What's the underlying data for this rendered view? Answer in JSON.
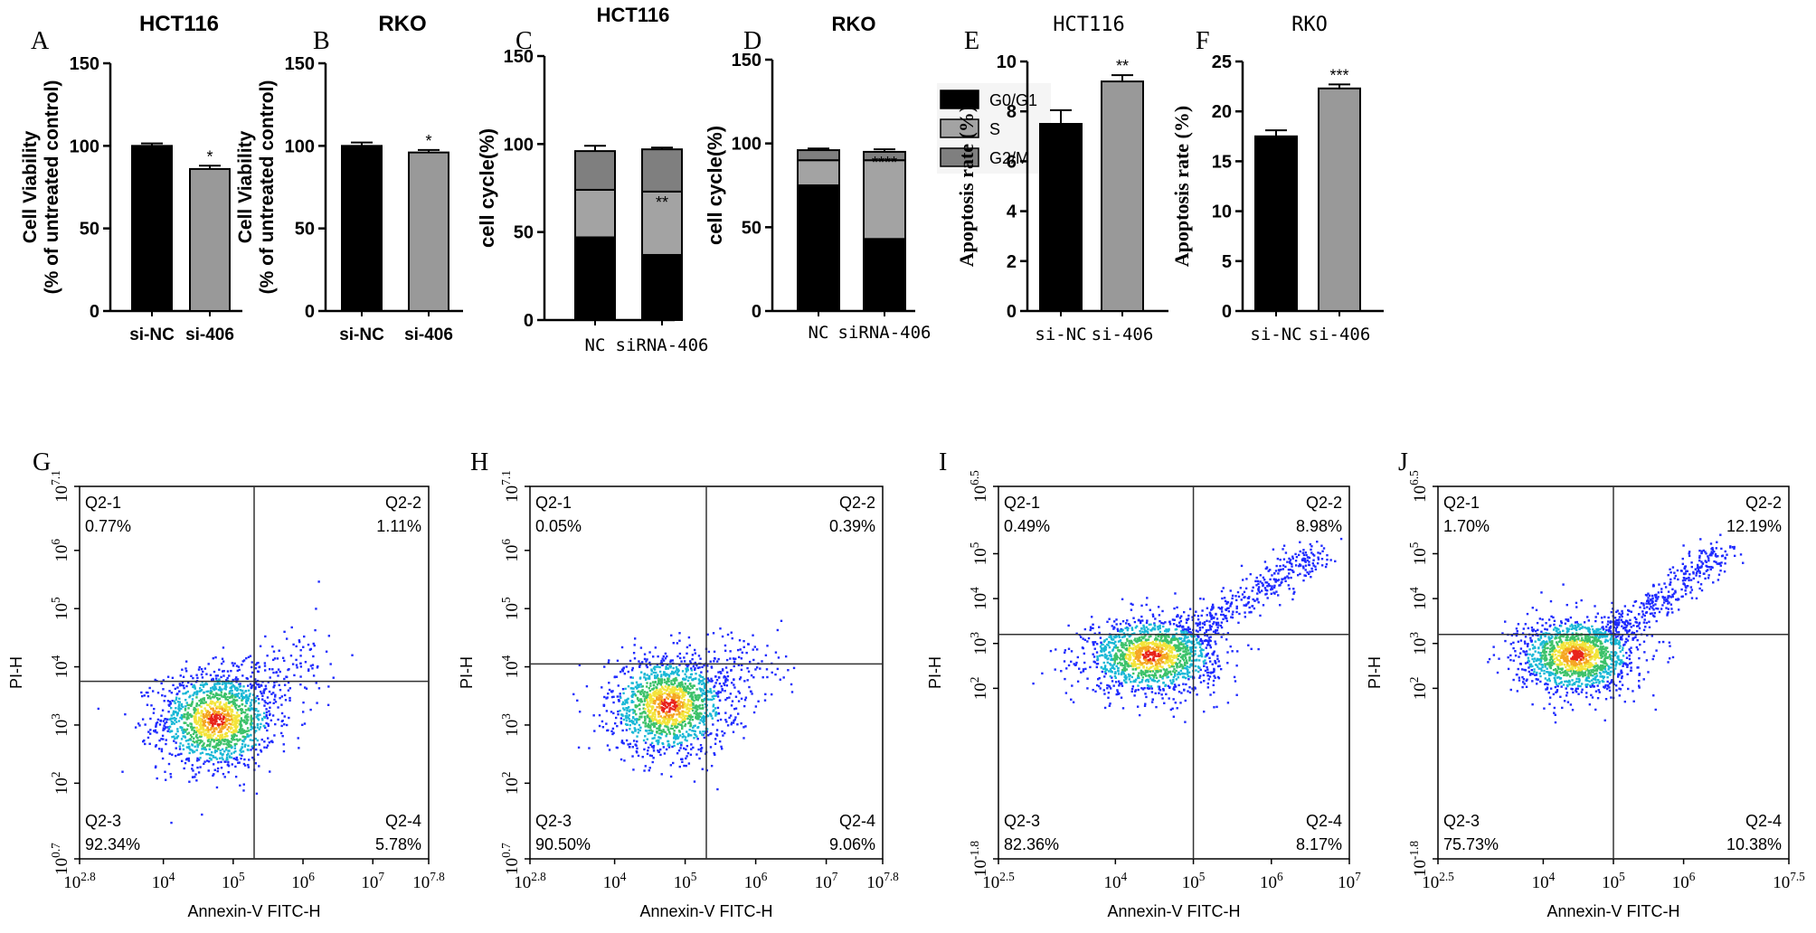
{
  "panel_letters": [
    "A",
    "B",
    "C",
    "D",
    "E",
    "F",
    "G",
    "H",
    "I",
    "J"
  ],
  "chart_data": [
    {
      "id": "A",
      "type": "bar",
      "title": "HCT116",
      "ylabel_line1": "Cell Viability",
      "ylabel_line2": "(% of untreated control)",
      "ylim": [
        0,
        150
      ],
      "yticks": [
        "0",
        "50",
        "100",
        "150"
      ],
      "categories": [
        "si-NC",
        "si-406"
      ],
      "values": [
        100,
        86
      ],
      "errors": [
        1.5,
        2
      ],
      "fills": [
        "#000000",
        "#999999"
      ],
      "significance": [
        "",
        "*"
      ]
    },
    {
      "id": "B",
      "type": "bar",
      "title": "RKO",
      "ylabel_line1": "Cell Viability",
      "ylabel_line2": "(% of untreated control)",
      "ylim": [
        0,
        150
      ],
      "yticks": [
        "0",
        "50",
        "100",
        "150"
      ],
      "categories": [
        "si-NC",
        "si-406"
      ],
      "values": [
        100,
        96
      ],
      "errors": [
        2,
        1.5
      ],
      "fills": [
        "#000000",
        "#999999"
      ],
      "significance": [
        "",
        "*"
      ]
    },
    {
      "id": "C",
      "type": "bar",
      "stacked": true,
      "title": "HCT116",
      "ylabel": "cell cycle(%)",
      "ylim": [
        0,
        150
      ],
      "yticks": [
        "0",
        "50",
        "100",
        "150"
      ],
      "categories": [
        "NC",
        "siRNA-406"
      ],
      "series": [
        {
          "name": "G0/G1",
          "values": [
            47,
            37
          ],
          "errors": [
            1,
            2
          ]
        },
        {
          "name": "S",
          "values": [
            27,
            36
          ],
          "errors": [
            3,
            2
          ]
        },
        {
          "name": "G2/M",
          "values": [
            22,
            24
          ],
          "errors": [
            3,
            1
          ]
        }
      ],
      "significance": {
        "S": [
          "",
          "**"
        ],
        "G0/G1": [
          "",
          "***"
        ]
      }
    },
    {
      "id": "D",
      "type": "bar",
      "stacked": true,
      "title": "RKO",
      "ylabel": "cell cycle(%)",
      "ylim": [
        0,
        150
      ],
      "yticks": [
        "0",
        "50",
        "100",
        "150"
      ],
      "categories": [
        "NC",
        "siRNA-406"
      ],
      "series": [
        {
          "name": "G0/G1",
          "values": [
            75,
            43
          ],
          "errors": [
            1.5,
            2
          ]
        },
        {
          "name": "S",
          "values": [
            15,
            47
          ],
          "errors": [
            1,
            1
          ]
        },
        {
          "name": "G2/M",
          "values": [
            6,
            5
          ],
          "errors": [
            1,
            1.5
          ]
        }
      ],
      "legend": [
        "G0/G1",
        "S",
        "G2/M"
      ],
      "legend_position": "top-right",
      "significance": {
        "G2/M": [
          "",
          "****"
        ],
        "G0/G1": [
          "",
          "****"
        ]
      }
    },
    {
      "id": "E",
      "type": "bar",
      "title": "HCT116",
      "ylabel": "Apoptosis rate (%)",
      "ylim": [
        0,
        10
      ],
      "yticks": [
        "0",
        "2",
        "4",
        "6",
        "8",
        "10"
      ],
      "categories": [
        "si-NC",
        "si-406"
      ],
      "values": [
        7.5,
        9.2
      ],
      "errors": [
        0.55,
        0.25
      ],
      "fills": [
        "#000000",
        "#999999"
      ],
      "significance": [
        "",
        "**"
      ]
    },
    {
      "id": "F",
      "type": "bar",
      "title": "RKO",
      "ylabel": "Apoptosis rate (%)",
      "ylim": [
        0,
        25
      ],
      "yticks": [
        "0",
        "5",
        "10",
        "15",
        "20",
        "25"
      ],
      "categories": [
        "si-NC",
        "si-406"
      ],
      "values": [
        17.5,
        22.3
      ],
      "errors": [
        0.6,
        0.4
      ],
      "fills": [
        "#000000",
        "#999999"
      ],
      "significance": [
        "",
        "***"
      ]
    },
    {
      "id": "G",
      "type": "scatter",
      "subtype": "flow-cytometry-density",
      "xlabel": "Annexin-V FITC-H",
      "ylabel": "PI-H",
      "x_log_range": [
        2.8,
        7.8
      ],
      "y_log_range": [
        0.7,
        7.1
      ],
      "xtick_labels": [
        {
          "base": "10",
          "exp": "2.8"
        },
        {
          "base": "10",
          "exp": "4"
        },
        {
          "base": "10",
          "exp": "5"
        },
        {
          "base": "10",
          "exp": "6"
        },
        {
          "base": "10",
          "exp": "7"
        },
        {
          "base": "10",
          "exp": "7.8"
        }
      ],
      "ytick_labels": [
        {
          "base": "10",
          "exp": "0.7"
        },
        {
          "base": "10",
          "exp": "2"
        },
        {
          "base": "10",
          "exp": "3"
        },
        {
          "base": "10",
          "exp": "4"
        },
        {
          "base": "10",
          "exp": "5"
        },
        {
          "base": "10",
          "exp": "6"
        },
        {
          "base": "10",
          "exp": "7.1"
        }
      ],
      "gate": {
        "x": 5.3,
        "y": 3.75
      },
      "quadrants": [
        {
          "name": "Q2-1",
          "value": "0.77%"
        },
        {
          "name": "Q2-2",
          "value": "1.11%"
        },
        {
          "name": "Q2-3",
          "value": "92.34%"
        },
        {
          "name": "Q2-4",
          "value": "5.78%"
        }
      ]
    },
    {
      "id": "H",
      "type": "scatter",
      "subtype": "flow-cytometry-density",
      "xlabel": "Annexin-V FITC-H",
      "ylabel": "PI-H",
      "x_log_range": [
        2.8,
        7.8
      ],
      "y_log_range": [
        0.7,
        7.1
      ],
      "xtick_labels": [
        {
          "base": "10",
          "exp": "2.8"
        },
        {
          "base": "10",
          "exp": "4"
        },
        {
          "base": "10",
          "exp": "5"
        },
        {
          "base": "10",
          "exp": "6"
        },
        {
          "base": "10",
          "exp": "7"
        },
        {
          "base": "10",
          "exp": "7.8"
        }
      ],
      "ytick_labels": [
        {
          "base": "10",
          "exp": "0.7"
        },
        {
          "base": "10",
          "exp": "2"
        },
        {
          "base": "10",
          "exp": "3"
        },
        {
          "base": "10",
          "exp": "4"
        },
        {
          "base": "10",
          "exp": "5"
        },
        {
          "base": "10",
          "exp": "6"
        },
        {
          "base": "10",
          "exp": "7.1"
        }
      ],
      "gate": {
        "x": 5.3,
        "y": 4.05
      },
      "quadrants": [
        {
          "name": "Q2-1",
          "value": "0.05%"
        },
        {
          "name": "Q2-2",
          "value": "0.39%"
        },
        {
          "name": "Q2-3",
          "value": "90.50%"
        },
        {
          "name": "Q2-4",
          "value": "9.06%"
        }
      ]
    },
    {
      "id": "I",
      "type": "scatter",
      "subtype": "flow-cytometry-density",
      "xlabel": "Annexin-V FITC-H",
      "ylabel": "PI-H",
      "x_log_range": [
        2.5,
        7
      ],
      "y_log_range": [
        -1.8,
        6.5
      ],
      "xtick_labels": [
        {
          "base": "10",
          "exp": "2.5"
        },
        {
          "base": "10",
          "exp": "4"
        },
        {
          "base": "10",
          "exp": "5"
        },
        {
          "base": "10",
          "exp": "6"
        },
        {
          "base": "10",
          "exp": "7"
        }
      ],
      "ytick_labels": [
        {
          "base": "10",
          "exp": "-1.8"
        },
        {
          "base": "10",
          "exp": "2"
        },
        {
          "base": "10",
          "exp": "3"
        },
        {
          "base": "10",
          "exp": "4"
        },
        {
          "base": "10",
          "exp": "5"
        },
        {
          "base": "10",
          "exp": "6.5"
        }
      ],
      "gate": {
        "x": 5.0,
        "y": 3.2
      },
      "quadrants": [
        {
          "name": "Q2-1",
          "value": "0.49%"
        },
        {
          "name": "Q2-2",
          "value": "8.98%"
        },
        {
          "name": "Q2-3",
          "value": "82.36%"
        },
        {
          "name": "Q2-4",
          "value": "8.17%"
        }
      ]
    },
    {
      "id": "J",
      "type": "scatter",
      "subtype": "flow-cytometry-density",
      "xlabel": "Annexin-V FITC-H",
      "ylabel": "PI-H",
      "x_log_range": [
        2.5,
        7.5
      ],
      "y_log_range": [
        -1.8,
        6.5
      ],
      "xtick_labels": [
        {
          "base": "10",
          "exp": "2.5"
        },
        {
          "base": "10",
          "exp": "4"
        },
        {
          "base": "10",
          "exp": "5"
        },
        {
          "base": "10",
          "exp": "6"
        },
        {
          "base": "10",
          "exp": "7.5"
        }
      ],
      "ytick_labels": [
        {
          "base": "10",
          "exp": "-1.8"
        },
        {
          "base": "10",
          "exp": "2"
        },
        {
          "base": "10",
          "exp": "3"
        },
        {
          "base": "10",
          "exp": "4"
        },
        {
          "base": "10",
          "exp": "5"
        },
        {
          "base": "10",
          "exp": "6.5"
        }
      ],
      "gate": {
        "x": 5.0,
        "y": 3.2
      },
      "quadrants": [
        {
          "name": "Q2-1",
          "value": "1.70%"
        },
        {
          "name": "Q2-2",
          "value": "12.19%"
        },
        {
          "name": "Q2-3",
          "value": "75.73%"
        },
        {
          "name": "Q2-4",
          "value": "10.38%"
        }
      ]
    }
  ]
}
